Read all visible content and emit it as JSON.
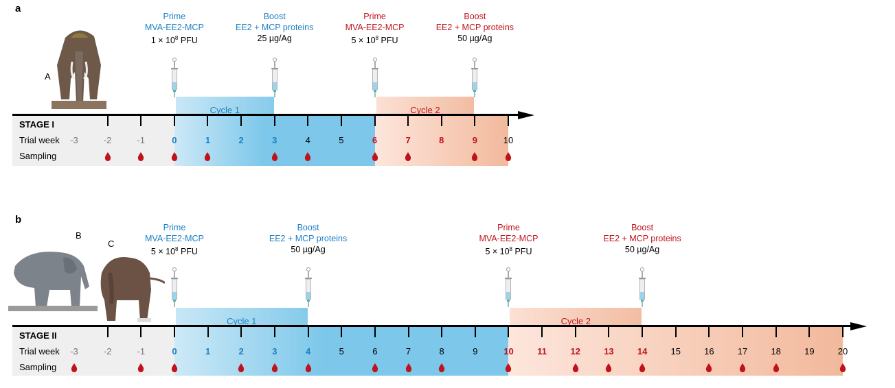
{
  "panels": [
    {
      "label": "a",
      "stage": "STAGE I",
      "row_trial": "Trial week",
      "row_sampling": "Sampling",
      "animals": [
        "A"
      ],
      "weeks": [
        -3,
        -2,
        -1,
        0,
        1,
        2,
        3,
        4,
        5,
        6,
        7,
        8,
        9,
        10
      ],
      "week_labels": [
        "-3",
        "-2",
        "-1",
        "0",
        "1",
        "2",
        "3",
        "4",
        "5",
        "6",
        "7",
        "8",
        "9",
        "10"
      ],
      "week_styles": [
        "gray",
        "gray",
        "gray",
        "blue",
        "blue",
        "blue",
        "blue",
        "black",
        "black",
        "red",
        "red",
        "red",
        "red",
        "black"
      ],
      "sampling_weeks": [
        -2,
        -1,
        0,
        1,
        3,
        4,
        6,
        7,
        9,
        10
      ],
      "cycles": [
        {
          "label": "Cycle 1",
          "color": "blue",
          "start_week": 0,
          "end_week": 3,
          "band_end_week": 6
        },
        {
          "label": "Cycle 2",
          "color": "red",
          "start_week": 6,
          "end_week": 9,
          "band_end_week": 10
        }
      ],
      "injections": [
        {
          "week": 0,
          "type": "Prime",
          "agent": "MVA-EE2-MCP",
          "dose": "1 × 10",
          "exp": "8",
          "unit": " PFU",
          "color": "blue"
        },
        {
          "week": 3,
          "type": "Boost",
          "agent": "EE2 + MCP proteins",
          "dose": "25 µg/Ag",
          "exp": "",
          "unit": "",
          "color": "blue"
        },
        {
          "week": 6,
          "type": "Prime",
          "agent": "MVA-EE2-MCP",
          "dose": "5 × 10",
          "exp": "8",
          "unit": " PFU",
          "color": "red"
        },
        {
          "week": 9,
          "type": "Boost",
          "agent": "EE2 + MCP proteins",
          "dose": "50 µg/Ag",
          "exp": "",
          "unit": "",
          "color": "red"
        }
      ]
    },
    {
      "label": "b",
      "stage": "STAGE II",
      "row_trial": "Trial week",
      "row_sampling": "Sampling",
      "animals": [
        "B",
        "C"
      ],
      "weeks": [
        -3,
        -2,
        -1,
        0,
        1,
        2,
        3,
        4,
        5,
        6,
        7,
        8,
        9,
        10,
        11,
        12,
        13,
        14,
        15,
        16,
        17,
        18,
        19,
        20
      ],
      "week_labels": [
        "-3",
        "-2",
        "-1",
        "0",
        "1",
        "2",
        "3",
        "4",
        "5",
        "6",
        "7",
        "8",
        "9",
        "10",
        "11",
        "12",
        "13",
        "14",
        "15",
        "16",
        "17",
        "18",
        "19",
        "20"
      ],
      "week_styles": [
        "gray",
        "gray",
        "gray",
        "blue",
        "blue",
        "blue",
        "blue",
        "blue",
        "black",
        "black",
        "black",
        "black",
        "black",
        "red",
        "red",
        "red",
        "red",
        "red",
        "black",
        "black",
        "black",
        "black",
        "black",
        "black"
      ],
      "sampling_weeks": [
        -3,
        -1,
        0,
        2,
        3,
        4,
        6,
        7,
        8,
        10,
        12,
        13,
        14,
        16,
        17,
        18,
        20
      ],
      "cycles": [
        {
          "label": "Cycle 1",
          "color": "blue",
          "start_week": 0,
          "end_week": 4,
          "band_end_week": 10
        },
        {
          "label": "Cycle 2",
          "color": "red",
          "start_week": 10,
          "end_week": 14,
          "band_end_week": 20
        }
      ],
      "injections": [
        {
          "week": 0,
          "type": "Prime",
          "agent": "MVA-EE2-MCP",
          "dose": "5 × 10",
          "exp": "8",
          "unit": " PFU",
          "color": "blue"
        },
        {
          "week": 4,
          "type": "Boost",
          "agent": "EE2 + MCP proteins",
          "dose": "50 µg/Ag",
          "exp": "",
          "unit": "",
          "color": "blue"
        },
        {
          "week": 10,
          "type": "Prime",
          "agent": "MVA-EE2-MCP",
          "dose": "5 × 10",
          "exp": "8",
          "unit": " PFU",
          "color": "red"
        },
        {
          "week": 14,
          "type": "Boost",
          "agent": "EE2 + MCP proteins",
          "dose": "50 µg/Ag",
          "exp": "",
          "unit": "",
          "color": "red"
        }
      ]
    }
  ],
  "colors": {
    "blue": "#1a7fc4",
    "red": "#c0121b",
    "gray": "#777777",
    "black": "#000000",
    "drop": "#c0121b"
  }
}
